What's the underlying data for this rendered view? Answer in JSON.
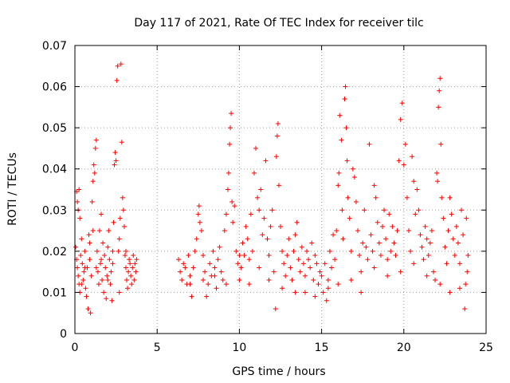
{
  "chart_data": {
    "type": "scatter",
    "title": "Day 117 of 2021, Rate Of TEC Index for receiver tilc",
    "xlabel": "GPS time / hours",
    "ylabel": "ROTI / TECUs",
    "xlim": [
      0,
      25
    ],
    "ylim": [
      0,
      0.07
    ],
    "x_ticks": [
      0,
      5,
      10,
      15,
      20,
      25
    ],
    "y_ticks": [
      0,
      0.01,
      0.02,
      0.03,
      0.04,
      0.05,
      0.06,
      0.07
    ],
    "x_tick_labels": [
      "0",
      "5",
      "10",
      "15",
      "20",
      "25"
    ],
    "y_tick_labels": [
      "0",
      "0.01",
      "0.02",
      "0.03",
      "0.04",
      "0.05",
      "0.06",
      "0.07"
    ],
    "grid": true,
    "marker": "+",
    "color": "#ff0000",
    "series": [
      {
        "points": [
          [
            0.1,
            0.0345
          ],
          [
            0.15,
            0.032
          ],
          [
            0.2,
            0.03
          ],
          [
            0.25,
            0.035
          ],
          [
            0.3,
            0.028
          ],
          [
            0.05,
            0.021
          ],
          [
            0.1,
            0.018
          ],
          [
            0.15,
            0.016
          ],
          [
            0.2,
            0.014
          ],
          [
            0.25,
            0.012
          ],
          [
            0.3,
            0.01
          ],
          [
            0.35,
            0.019
          ],
          [
            0.4,
            0.023
          ],
          [
            0.45,
            0.017
          ],
          [
            0.5,
            0.013
          ],
          [
            0.55,
            0.015
          ],
          [
            0.6,
            0.02
          ],
          [
            0.65,
            0.011
          ],
          [
            0.7,
            0.009
          ],
          [
            0.75,
            0.016
          ],
          [
            0.8,
            0.006
          ],
          [
            0.85,
            0.024
          ],
          [
            0.9,
            0.018
          ],
          [
            0.95,
            0.005
          ],
          [
            1.0,
            0.014
          ],
          [
            1.05,
            0.032
          ],
          [
            1.1,
            0.037
          ],
          [
            1.15,
            0.041
          ],
          [
            1.2,
            0.039
          ],
          [
            1.25,
            0.045
          ],
          [
            1.3,
            0.047
          ],
          [
            1.35,
            0.02
          ],
          [
            1.4,
            0.015
          ],
          [
            1.45,
            0.012
          ],
          [
            1.5,
            0.025
          ],
          [
            1.55,
            0.017
          ],
          [
            1.6,
            0.029
          ],
          [
            1.65,
            0.013
          ],
          [
            1.7,
            0.022
          ],
          [
            1.75,
            0.01
          ],
          [
            1.8,
            0.019
          ],
          [
            1.85,
            0.016
          ],
          [
            1.9,
            0.0085
          ],
          [
            1.95,
            0.014
          ],
          [
            2.0,
            0.021
          ],
          [
            2.05,
            0.025
          ],
          [
            2.1,
            0.018
          ],
          [
            2.15,
            0.012
          ],
          [
            2.2,
            0.015
          ],
          [
            2.25,
            0.008
          ],
          [
            2.3,
            0.017
          ],
          [
            2.35,
            0.027
          ],
          [
            2.4,
            0.041
          ],
          [
            2.45,
            0.044
          ],
          [
            2.5,
            0.042
          ],
          [
            2.55,
            0.0615
          ],
          [
            2.6,
            0.065
          ],
          [
            2.65,
            0.02
          ],
          [
            2.7,
            0.023
          ],
          [
            2.75,
            0.028
          ],
          [
            2.8,
            0.0655
          ],
          [
            2.85,
            0.0465
          ],
          [
            2.9,
            0.033
          ],
          [
            2.95,
            0.03
          ],
          [
            3.0,
            0.026
          ],
          [
            3.05,
            0.019
          ],
          [
            3.1,
            0.016
          ],
          [
            3.15,
            0.013
          ],
          [
            3.2,
            0.011
          ],
          [
            3.25,
            0.015
          ],
          [
            3.3,
            0.018
          ],
          [
            3.35,
            0.017
          ],
          [
            3.4,
            0.014
          ],
          [
            3.45,
            0.012
          ],
          [
            3.5,
            0.016
          ],
          [
            3.55,
            0.019
          ],
          [
            3.6,
            0.013
          ],
          [
            3.65,
            0.017
          ],
          [
            3.7,
            0.015
          ],
          [
            3.75,
            0.018
          ],
          [
            0.4,
            0.012
          ],
          [
            0.6,
            0.016
          ],
          [
            0.9,
            0.022
          ],
          [
            1.1,
            0.025
          ],
          [
            1.3,
            0.016
          ],
          [
            1.6,
            0.018
          ],
          [
            2.0,
            0.013
          ],
          [
            2.3,
            0.02
          ],
          [
            2.7,
            0.01
          ],
          [
            3.1,
            0.02
          ],
          [
            6.3,
            0.018
          ],
          [
            6.4,
            0.015
          ],
          [
            6.5,
            0.013
          ],
          [
            6.6,
            0.017
          ],
          [
            6.7,
            0.016
          ],
          [
            6.8,
            0.012
          ],
          [
            6.9,
            0.019
          ],
          [
            7.0,
            0.014
          ],
          [
            7.1,
            0.009
          ],
          [
            7.2,
            0.016
          ],
          [
            7.3,
            0.02
          ],
          [
            7.4,
            0.023
          ],
          [
            7.5,
            0.029
          ],
          [
            7.55,
            0.031
          ],
          [
            7.6,
            0.027
          ],
          [
            7.7,
            0.025
          ],
          [
            7.8,
            0.019
          ],
          [
            7.9,
            0.015
          ],
          [
            8.0,
            0.009
          ],
          [
            8.1,
            0.012
          ],
          [
            8.2,
            0.017
          ],
          [
            8.3,
            0.014
          ],
          [
            8.4,
            0.02
          ],
          [
            8.5,
            0.016
          ],
          [
            8.6,
            0.011
          ],
          [
            8.7,
            0.018
          ],
          [
            8.8,
            0.021
          ],
          [
            8.9,
            0.015
          ],
          [
            9.0,
            0.013
          ],
          [
            9.1,
            0.025
          ],
          [
            9.2,
            0.029
          ],
          [
            9.3,
            0.035
          ],
          [
            9.35,
            0.039
          ],
          [
            9.4,
            0.046
          ],
          [
            9.45,
            0.05
          ],
          [
            9.5,
            0.0535
          ],
          [
            9.55,
            0.032
          ],
          [
            9.6,
            0.027
          ],
          [
            9.7,
            0.031
          ],
          [
            9.8,
            0.02
          ],
          [
            9.9,
            0.017
          ],
          [
            10.0,
            0.013
          ],
          [
            10.1,
            0.016
          ],
          [
            10.2,
            0.022
          ],
          [
            10.3,
            0.019
          ],
          [
            10.4,
            0.026
          ],
          [
            10.5,
            0.023
          ],
          [
            10.6,
            0.018
          ],
          [
            10.7,
            0.029
          ],
          [
            10.8,
            0.02
          ],
          [
            10.9,
            0.039
          ],
          [
            11.0,
            0.045
          ],
          [
            11.1,
            0.033
          ],
          [
            11.2,
            0.03
          ],
          [
            11.3,
            0.035
          ],
          [
            11.4,
            0.024
          ],
          [
            11.5,
            0.028
          ],
          [
            11.6,
            0.042
          ],
          [
            11.7,
            0.023
          ],
          [
            11.8,
            0.019
          ],
          [
            11.9,
            0.026
          ],
          [
            12.0,
            0.03
          ],
          [
            12.1,
            0.015
          ],
          [
            12.2,
            0.006
          ],
          [
            12.25,
            0.043
          ],
          [
            12.3,
            0.048
          ],
          [
            12.35,
            0.051
          ],
          [
            12.4,
            0.036
          ],
          [
            12.5,
            0.026
          ],
          [
            12.6,
            0.02
          ],
          [
            12.7,
            0.017
          ],
          [
            12.8,
            0.014
          ],
          [
            12.9,
            0.019
          ],
          [
            13.0,
            0.023
          ],
          [
            13.1,
            0.016
          ],
          [
            13.2,
            0.013
          ],
          [
            13.3,
            0.02
          ],
          [
            13.4,
            0.024
          ],
          [
            13.5,
            0.027
          ],
          [
            13.6,
            0.018
          ],
          [
            13.7,
            0.015
          ],
          [
            13.8,
            0.021
          ],
          [
            13.9,
            0.017
          ],
          [
            14.0,
            0.014
          ],
          [
            14.1,
            0.02
          ],
          [
            14.2,
            0.018
          ],
          [
            14.3,
            0.016
          ],
          [
            14.4,
            0.022
          ],
          [
            14.5,
            0.013
          ],
          [
            14.6,
            0.019
          ],
          [
            14.7,
            0.017
          ],
          [
            14.8,
            0.012
          ],
          [
            14.9,
            0.015
          ],
          [
            7.0,
            0.012
          ],
          [
            7.8,
            0.013
          ],
          [
            8.5,
            0.014
          ],
          [
            9.2,
            0.012
          ],
          [
            10.0,
            0.019
          ],
          [
            10.6,
            0.012
          ],
          [
            11.2,
            0.016
          ],
          [
            11.8,
            0.013
          ],
          [
            12.6,
            0.011
          ],
          [
            13.4,
            0.01
          ],
          [
            14.0,
            0.01
          ],
          [
            14.6,
            0.009
          ],
          [
            15.0,
            0.014
          ],
          [
            15.1,
            0.01
          ],
          [
            15.2,
            0.017
          ],
          [
            15.3,
            0.008
          ],
          [
            15.4,
            0.013
          ],
          [
            15.5,
            0.02
          ],
          [
            15.6,
            0.016
          ],
          [
            15.7,
            0.024
          ],
          [
            15.8,
            0.018
          ],
          [
            15.9,
            0.025
          ],
          [
            16.0,
            0.036
          ],
          [
            16.05,
            0.039
          ],
          [
            16.1,
            0.053
          ],
          [
            16.2,
            0.047
          ],
          [
            16.25,
            0.03
          ],
          [
            16.3,
            0.023
          ],
          [
            16.4,
            0.057
          ],
          [
            16.45,
            0.06
          ],
          [
            16.5,
            0.05
          ],
          [
            16.55,
            0.042
          ],
          [
            16.6,
            0.033
          ],
          [
            16.7,
            0.028
          ],
          [
            16.8,
            0.02
          ],
          [
            16.9,
            0.04
          ],
          [
            17.0,
            0.038
          ],
          [
            17.1,
            0.032
          ],
          [
            17.2,
            0.025
          ],
          [
            17.3,
            0.019
          ],
          [
            17.4,
            0.015
          ],
          [
            17.5,
            0.022
          ],
          [
            17.6,
            0.03
          ],
          [
            17.7,
            0.021
          ],
          [
            17.8,
            0.018
          ],
          [
            17.9,
            0.046
          ],
          [
            18.0,
            0.024
          ],
          [
            18.1,
            0.02
          ],
          [
            18.2,
            0.036
          ],
          [
            18.3,
            0.033
          ],
          [
            18.4,
            0.027
          ],
          [
            18.5,
            0.022
          ],
          [
            18.6,
            0.019
          ],
          [
            18.7,
            0.026
          ],
          [
            18.8,
            0.03
          ],
          [
            18.9,
            0.023
          ],
          [
            19.0,
            0.018
          ],
          [
            19.1,
            0.029
          ],
          [
            19.2,
            0.02
          ],
          [
            19.3,
            0.026
          ],
          [
            19.4,
            0.022
          ],
          [
            19.5,
            0.019
          ],
          [
            19.6,
            0.025
          ],
          [
            19.7,
            0.042
          ],
          [
            19.8,
            0.052
          ],
          [
            19.9,
            0.056
          ],
          [
            20.0,
            0.041
          ],
          [
            20.1,
            0.046
          ],
          [
            20.2,
            0.033
          ],
          [
            20.3,
            0.025
          ],
          [
            20.4,
            0.02
          ],
          [
            20.5,
            0.043
          ],
          [
            20.6,
            0.037
          ],
          [
            20.7,
            0.029
          ],
          [
            20.8,
            0.035
          ],
          [
            20.9,
            0.03
          ],
          [
            21.0,
            0.024
          ],
          [
            21.1,
            0.021
          ],
          [
            21.2,
            0.018
          ],
          [
            21.3,
            0.026
          ],
          [
            21.4,
            0.023
          ],
          [
            21.5,
            0.019
          ],
          [
            21.6,
            0.022
          ],
          [
            21.7,
            0.025
          ],
          [
            21.8,
            0.015
          ],
          [
            21.9,
            0.013
          ],
          [
            22.0,
            0.039
          ],
          [
            22.05,
            0.037
          ],
          [
            22.1,
            0.055
          ],
          [
            22.15,
            0.059
          ],
          [
            22.2,
            0.062
          ],
          [
            22.25,
            0.046
          ],
          [
            22.3,
            0.033
          ],
          [
            22.4,
            0.028
          ],
          [
            22.5,
            0.021
          ],
          [
            22.6,
            0.017
          ],
          [
            22.7,
            0.025
          ],
          [
            22.8,
            0.033
          ],
          [
            22.9,
            0.029
          ],
          [
            23.0,
            0.023
          ],
          [
            23.1,
            0.019
          ],
          [
            23.2,
            0.026
          ],
          [
            23.3,
            0.022
          ],
          [
            23.4,
            0.017
          ],
          [
            23.5,
            0.03
          ],
          [
            23.6,
            0.024
          ],
          [
            23.7,
            0.006
          ],
          [
            23.75,
            0.012
          ],
          [
            23.8,
            0.028
          ],
          [
            23.85,
            0.015
          ],
          [
            23.9,
            0.019
          ],
          [
            15.4,
            0.011
          ],
          [
            16.0,
            0.012
          ],
          [
            16.8,
            0.013
          ],
          [
            17.4,
            0.01
          ],
          [
            18.2,
            0.016
          ],
          [
            19.0,
            0.014
          ],
          [
            19.8,
            0.015
          ],
          [
            20.6,
            0.017
          ],
          [
            21.4,
            0.014
          ],
          [
            22.2,
            0.012
          ],
          [
            22.8,
            0.01
          ],
          [
            23.4,
            0.011
          ]
        ]
      }
    ]
  }
}
